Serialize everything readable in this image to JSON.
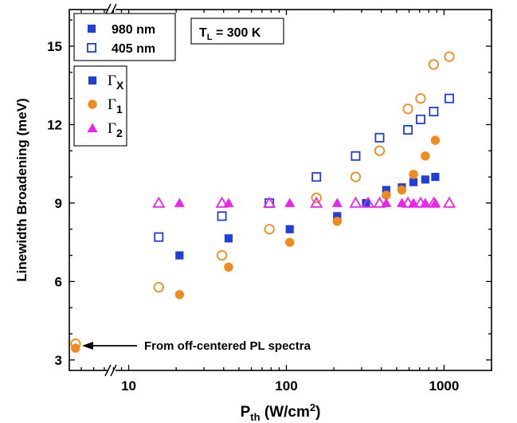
{
  "chart_data": {
    "type": "scatter",
    "x_scale": "log",
    "xlim": [
      4.2,
      2000
    ],
    "ylim": [
      2.6,
      16.4
    ],
    "y_ticks": [
      3,
      6,
      9,
      12,
      15
    ],
    "x_ticks": [
      10,
      100,
      1000
    ],
    "xlabel": {
      "main": "P",
      "sub": "th",
      "rest": " (W/cm",
      "sup": "2",
      "end": ")"
    },
    "ylabel": "Linewidth Broadening (meV)",
    "annotation": {
      "label": "T",
      "sub": "L",
      "rest": " = 300 K"
    },
    "arrow_note": "From off-centered PL spectra",
    "legend_excitation": [
      {
        "name": "980 nm",
        "marker": "square",
        "filled": true
      },
      {
        "name": "405 nm",
        "marker": "square",
        "filled": false
      }
    ],
    "legend_params": [
      {
        "symbol": "Γ",
        "sub": "X",
        "marker": "square",
        "color": "#1f3fd6"
      },
      {
        "symbol": "Γ",
        "sub": "1",
        "marker": "circle",
        "color": "#f08c1e"
      },
      {
        "symbol": "Γ",
        "sub": "2",
        "marker": "triangle",
        "color": "#ee22ee"
      }
    ],
    "series": [
      {
        "key": "gx_980",
        "marker": "square",
        "filled": true,
        "color": "#1f3fd6",
        "points": [
          [
            21,
            7.0
          ],
          [
            43,
            7.65
          ],
          [
            105,
            8.0
          ],
          [
            210,
            8.5
          ],
          [
            320,
            9.0
          ],
          [
            430,
            9.5
          ],
          [
            540,
            9.6
          ],
          [
            640,
            9.8
          ],
          [
            760,
            9.9
          ],
          [
            880,
            10.0
          ]
        ]
      },
      {
        "key": "gx_405",
        "marker": "square",
        "filled": false,
        "color": "#1f3fd6",
        "points": [
          [
            15.5,
            7.7
          ],
          [
            39,
            8.5
          ],
          [
            78,
            9.0
          ],
          [
            155,
            10.0
          ],
          [
            275,
            10.8
          ],
          [
            390,
            11.5
          ],
          [
            590,
            11.8
          ],
          [
            710,
            12.2
          ],
          [
            860,
            12.5
          ],
          [
            1080,
            13.0
          ]
        ]
      },
      {
        "key": "g1_980",
        "marker": "circle",
        "filled": true,
        "color": "#f08c1e",
        "points": [
          [
            4.6,
            3.45
          ],
          [
            21,
            5.5
          ],
          [
            43,
            6.55
          ],
          [
            105,
            7.5
          ],
          [
            210,
            8.3
          ],
          [
            430,
            9.3
          ],
          [
            540,
            9.5
          ],
          [
            640,
            10.1
          ],
          [
            760,
            10.8
          ],
          [
            880,
            11.4
          ]
        ]
      },
      {
        "key": "g1_405",
        "marker": "circle",
        "filled": false,
        "color": "#f08c1e",
        "points": [
          [
            4.6,
            3.62
          ],
          [
            15.5,
            5.78
          ],
          [
            39,
            7.0
          ],
          [
            78,
            8.0
          ],
          [
            155,
            9.2
          ],
          [
            275,
            10.0
          ],
          [
            390,
            11.0
          ],
          [
            590,
            12.6
          ],
          [
            710,
            13.0
          ],
          [
            860,
            14.3
          ],
          [
            1080,
            14.6
          ]
        ]
      },
      {
        "key": "g2_980",
        "marker": "triangle",
        "filled": true,
        "color": "#ee22ee",
        "points": [
          [
            21,
            9.0
          ],
          [
            43,
            9.0
          ],
          [
            105,
            9.0
          ],
          [
            210,
            9.0
          ],
          [
            430,
            9.0
          ],
          [
            540,
            9.0
          ],
          [
            640,
            9.0
          ],
          [
            760,
            9.0
          ],
          [
            880,
            9.0
          ]
        ]
      },
      {
        "key": "g2_405",
        "marker": "triangle",
        "filled": false,
        "color": "#ee22ee",
        "points": [
          [
            15.5,
            9.0
          ],
          [
            39,
            9.0
          ],
          [
            78,
            9.0
          ],
          [
            155,
            9.0
          ],
          [
            275,
            9.0
          ],
          [
            330,
            9.0
          ],
          [
            390,
            9.0
          ],
          [
            590,
            9.0
          ],
          [
            710,
            9.0
          ],
          [
            860,
            9.0
          ],
          [
            1080,
            9.0
          ]
        ]
      }
    ]
  }
}
